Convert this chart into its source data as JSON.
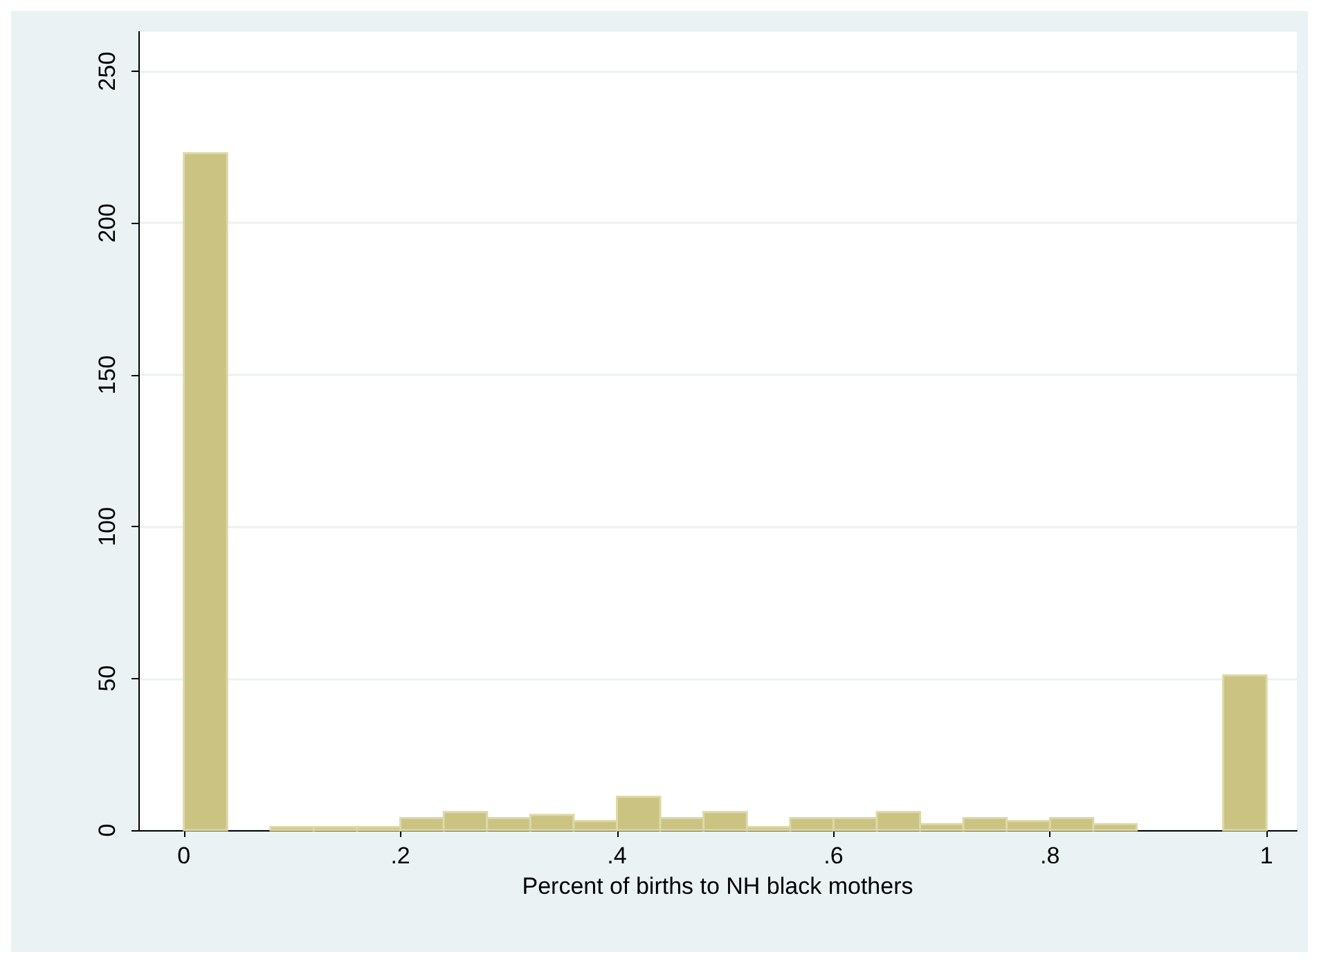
{
  "chart_data": {
    "type": "histogram",
    "xlabel": "Percent of births to NH black mothers",
    "bins": [
      0,
      0.04,
      0.08,
      0.12,
      0.16,
      0.2,
      0.24,
      0.28,
      0.32,
      0.36,
      0.4,
      0.44,
      0.48,
      0.52,
      0.56,
      0.6,
      0.64,
      0.68,
      0.72,
      0.76,
      0.8,
      0.84,
      0.88,
      0.92,
      0.96,
      1
    ],
    "values": [
      223,
      0,
      1,
      1,
      1,
      4,
      6,
      4,
      5,
      3,
      11,
      4,
      6,
      1,
      4,
      4,
      6,
      2,
      4,
      3,
      4,
      2,
      0,
      0,
      51
    ],
    "color": "#cbc382",
    "xlim": [
      -0.042,
      1.028
    ],
    "ylim": [
      0,
      263
    ],
    "xticks": [
      0,
      {
        "value": 0.2,
        "label": ".2"
      },
      {
        "value": 0.4,
        "label": ".4"
      },
      {
        "value": 0.6,
        "label": ".6"
      },
      {
        "value": 0.8,
        "label": ".8"
      },
      1
    ],
    "yticks": [
      0,
      50,
      100,
      150,
      200,
      250
    ],
    "grid": "y"
  }
}
